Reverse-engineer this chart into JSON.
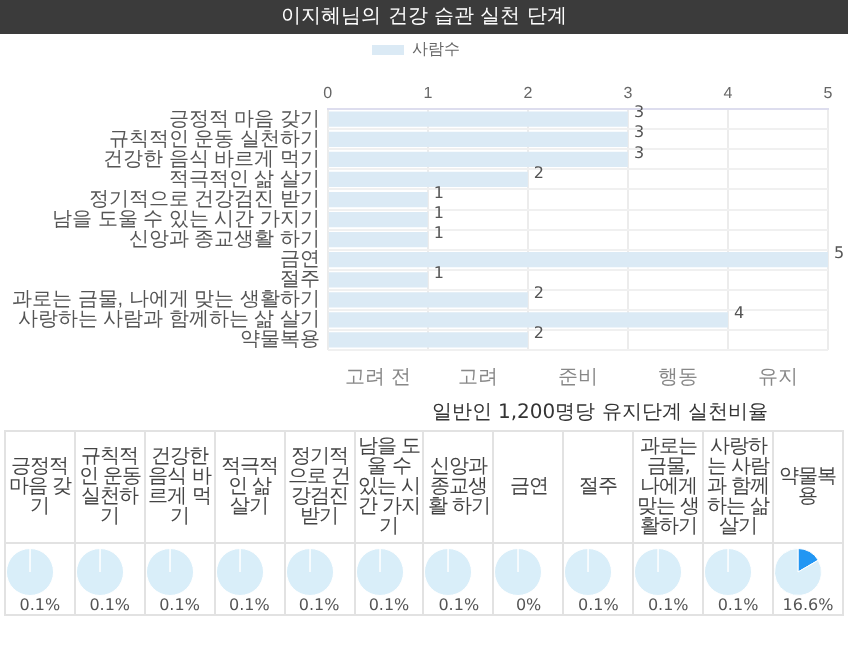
{
  "chart_data": [
    {
      "type": "bar",
      "title": "이지혜님의 건강 습관 실천 단계",
      "orientation": "horizontal",
      "categories": [
        "긍정적 마음 갖기",
        "규칙적인 운동 실천하기",
        "건강한 음식 바르게 먹기",
        "적극적인 삶 살기",
        "정기적으로 건강검진 받기",
        "남을 도울 수 있는 시간 가지기",
        "신앙과 종교생활 하기",
        "금연",
        "절주",
        "과로는 금물, 나에게 맞는 생활하기",
        "사랑하는 사람과 함께하는 삶 살기",
        "약물복용"
      ],
      "series": [
        {
          "name": "사람수",
          "color": "#dbeaf5",
          "values": [
            3,
            3,
            3,
            2,
            1,
            1,
            1,
            5,
            1,
            2,
            4,
            2
          ]
        }
      ],
      "xlim": [
        0,
        5
      ],
      "xticks": [
        0,
        1,
        2,
        3,
        4,
        5
      ],
      "annotations": [
        "고려 전",
        "고려",
        "준비",
        "행동",
        "유지"
      ],
      "grid": true,
      "legend": "top",
      "data_labels": true
    },
    {
      "type": "other",
      "title": "일반인 1,200명당 유지단계 실천비율",
      "categories": [
        "긍정적 마음 갖기",
        "규칙적인 운동 실천하기",
        "건강한 음식 바르게 먹기",
        "적극적인 삶 살기",
        "정기적으로 건강검진 받기",
        "남을 도울 수 있는 시간 가지기",
        "신앙과 종교생활 하기",
        "금연",
        "절주",
        "과로는 금물, 나에게 맞는 생활하기",
        "사랑하는 사람과 함께하는 삶 살기",
        "약물복용"
      ],
      "values": [
        0.1,
        0.1,
        0.1,
        0.1,
        0.1,
        0.1,
        0.1,
        0,
        0.1,
        0.1,
        0.1,
        16.6
      ],
      "value_labels": [
        "0.1%",
        "0.1%",
        "0.1%",
        "0.1%",
        "0.1%",
        "0.1%",
        "0.1%",
        "0%",
        "0.1%",
        "0.1%",
        "0.1%",
        "16.6%"
      ],
      "color": "#2196f3"
    }
  ]
}
